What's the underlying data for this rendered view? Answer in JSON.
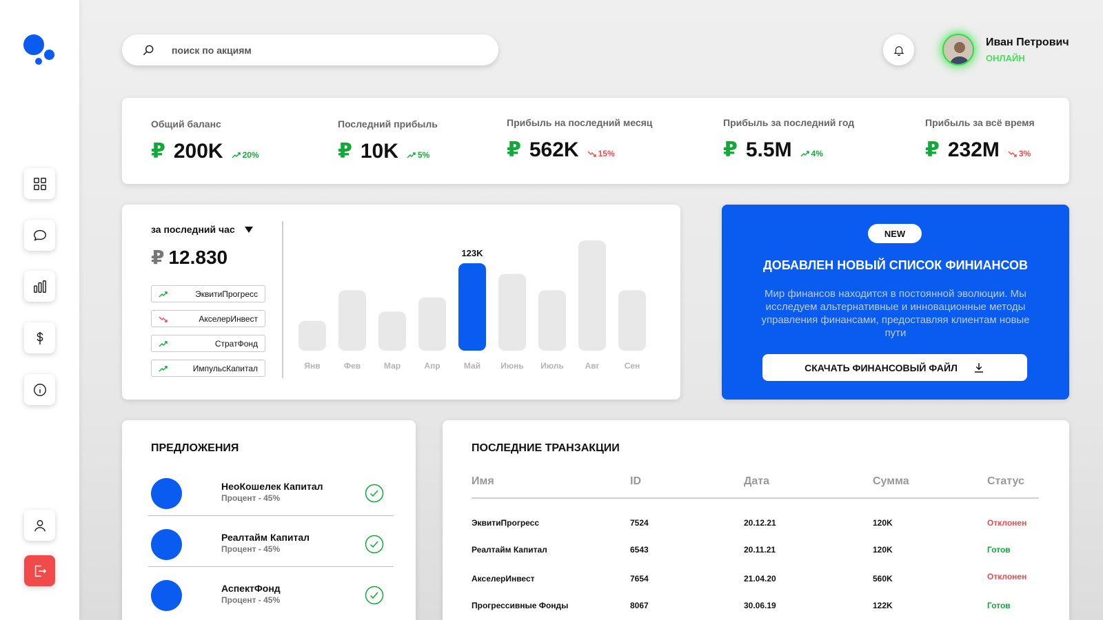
{
  "search": {
    "placeholder": "поиск по акциям"
  },
  "user": {
    "name": "Иван Петрович",
    "status": "ОНЛАЙН"
  },
  "stats": [
    {
      "label": "Общий баланс",
      "currency": "₽",
      "value": "200K",
      "change": "20%",
      "trend": "up"
    },
    {
      "label": "Последний прибыль",
      "currency": "₽",
      "value": "10K",
      "change": "5%",
      "trend": "up"
    },
    {
      "label": "Прибыль на последний месяц",
      "currency": "₽",
      "value": "562K",
      "change": "15%",
      "trend": "down"
    },
    {
      "label": "Прибыль за последний год",
      "currency": "₽",
      "value": "5.5M",
      "change": "4%",
      "trend": "up"
    },
    {
      "label": "Прибыль за всё время",
      "currency": "₽",
      "value": "232M",
      "change": "3%",
      "trend": "down"
    }
  ],
  "chart_panel": {
    "period": "за последний час",
    "currency": "₽",
    "value": "12.830",
    "tickers": [
      {
        "name": "ЭквитиПрогресс",
        "trend": "up"
      },
      {
        "name": "АкселерИнвест",
        "trend": "down"
      },
      {
        "name": "СтратФонд",
        "trend": "up"
      },
      {
        "name": "ИмпульсКапитал",
        "trend": "up"
      }
    ]
  },
  "chart_data": {
    "type": "bar",
    "categories": [
      "Янв",
      "Фев",
      "Мар",
      "Апр",
      "Май",
      "Июнь",
      "Июль",
      "Авг",
      "Сен"
    ],
    "values": [
      42,
      85,
      55,
      75,
      123,
      108,
      85,
      155,
      85
    ],
    "highlight_index": 4,
    "highlight_label": "123K",
    "ylim": [
      0,
      160
    ],
    "grid": false,
    "colors": {
      "bar": "#e8e8e8",
      "highlight": "#0a5cf0"
    }
  },
  "promo": {
    "badge": "NEW",
    "title": "ДОБАВЛЕН НОВЫЙ СПИСОК ФИНИАНСОВ",
    "text": "Мир финансов находится в постоянной эволюции. Мы исследуем альтернативные и инновационные методы управления финансами, предоставляя клиентам новые пути",
    "button": "СКАЧАТЬ ФИНАНСОВЫЙ ФАЙЛ"
  },
  "offers": {
    "title": "ПРЕДЛОЖЕНИЯ",
    "items": [
      {
        "name": "НеоКошелек Капитал",
        "percent": "Процент - 45%"
      },
      {
        "name": "Реалтайм Капитал",
        "percent": "Процент - 45%"
      },
      {
        "name": "АспектФонд",
        "percent": "Процент - 45%"
      }
    ]
  },
  "transactions": {
    "title": "ПОСЛЕДНИЕ ТРАНЗАКЦИИ",
    "columns": [
      "Имя",
      "ID",
      "Дата",
      "Сумма",
      "Статус"
    ],
    "rows": [
      [
        "ЭквитиПрогресс",
        "7524",
        "20.12.21",
        "120K",
        "Отклонен"
      ],
      [
        "Реалтайм Капитал",
        "6543",
        "20.11.21",
        "120K",
        "Готов"
      ],
      [
        "АкселерИнвест",
        "7654",
        "21.04.20",
        "560K",
        "Отклонен"
      ],
      [
        "Прогрессивные Фонды",
        "8067",
        "30.06.19",
        "122K",
        "Готов"
      ]
    ]
  },
  "colors": {
    "accent": "#0a5cf0",
    "positive": "#14a83a",
    "negative": "#f04a4a",
    "online": "#4ddc5a"
  }
}
